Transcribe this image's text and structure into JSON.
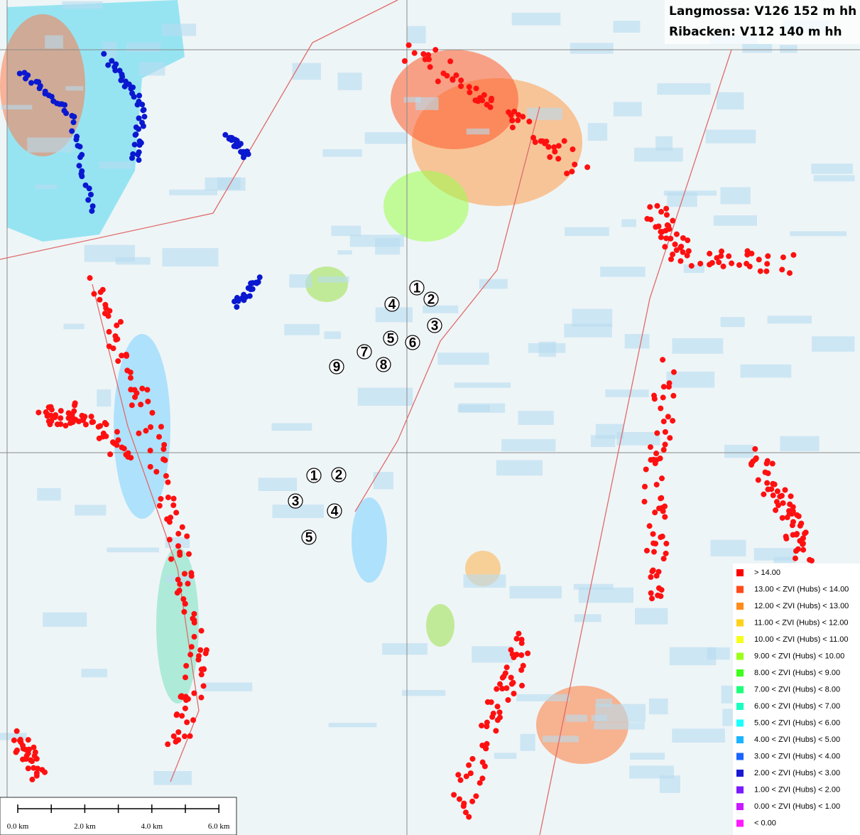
{
  "header": {
    "lines": [
      "Langmossa: V126 152 m hh",
      "Ribacken: V112 140 m hh"
    ]
  },
  "turbines": {
    "langmossa": [
      "1",
      "2",
      "3",
      "4",
      "5",
      "6",
      "7",
      "8",
      "9"
    ],
    "ribacken": [
      "1",
      "2",
      "3",
      "4",
      "5"
    ]
  },
  "legend": {
    "items": [
      {
        "label": "> 14.00",
        "color": "#ff0000"
      },
      {
        "label": "13.00 < ZVI (Hubs) < 14.00",
        "color": "#ff4a1a"
      },
      {
        "label": "12.00 < ZVI (Hubs) < 13.00",
        "color": "#ff8c1a"
      },
      {
        "label": "11.00 < ZVI (Hubs) < 12.00",
        "color": "#ffd21a"
      },
      {
        "label": "10.00 < ZVI (Hubs) < 11.00",
        "color": "#f5ff1a"
      },
      {
        "label": "9.00 < ZVI (Hubs) < 10.00",
        "color": "#9cff1a"
      },
      {
        "label": "8.00 < ZVI (Hubs) < 9.00",
        "color": "#3cff1a"
      },
      {
        "label": "7.00 < ZVI (Hubs) < 8.00",
        "color": "#1aff7a"
      },
      {
        "label": "6.00 < ZVI (Hubs) < 7.00",
        "color": "#1affc0"
      },
      {
        "label": "5.00 < ZVI (Hubs) < 6.00",
        "color": "#1affff"
      },
      {
        "label": "4.00 < ZVI (Hubs) < 5.00",
        "color": "#1ab4ff"
      },
      {
        "label": "3.00 < ZVI (Hubs) < 4.00",
        "color": "#1a64ff"
      },
      {
        "label": "2.00 < ZVI (Hubs) < 3.00",
        "color": "#1a1ad2"
      },
      {
        "label": "1.00 < ZVI (Hubs) < 2.00",
        "color": "#7a1aff"
      },
      {
        "label": "0.00 < ZVI (Hubs) < 1.00",
        "color": "#c81aff"
      },
      {
        "label": "< 0.00",
        "color": "#ff1aff"
      }
    ]
  },
  "scale_bar": {
    "labels": [
      "0.0 km",
      "2.0 km",
      "4.0 km",
      "6.0 km"
    ]
  }
}
